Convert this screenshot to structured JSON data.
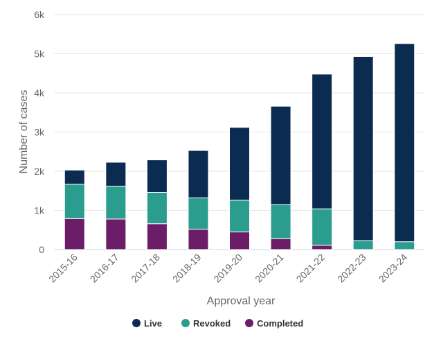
{
  "chart_data": {
    "type": "bar",
    "stacked": true,
    "title": "",
    "xlabel": "Approval year",
    "ylabel": "Number of cases",
    "ylim": [
      0,
      6000
    ],
    "yticks": [
      0,
      1000,
      2000,
      3000,
      4000,
      5000,
      6000
    ],
    "ytick_labels": [
      "0",
      "1k",
      "2k",
      "3k",
      "4k",
      "5k",
      "6k"
    ],
    "categories": [
      "2015-16",
      "2016-17",
      "2017-18",
      "2018-19",
      "2019-20",
      "2020-21",
      "2021-22",
      "2022-23",
      "2023-24"
    ],
    "series": [
      {
        "name": "Completed",
        "color": "#6b1d67",
        "values": [
          790,
          780,
          660,
          520,
          450,
          280,
          110,
          0,
          0
        ]
      },
      {
        "name": "Revoked",
        "color": "#2a9d8f",
        "values": [
          880,
          840,
          800,
          800,
          810,
          870,
          930,
          230,
          200
        ]
      },
      {
        "name": "Live",
        "color": "#0b2c50",
        "values": [
          360,
          610,
          830,
          1210,
          1860,
          2510,
          3440,
          4700,
          5060
        ]
      }
    ],
    "legend": {
      "position": "bottom",
      "order": [
        "Live",
        "Revoked",
        "Completed"
      ]
    },
    "grid": true
  }
}
